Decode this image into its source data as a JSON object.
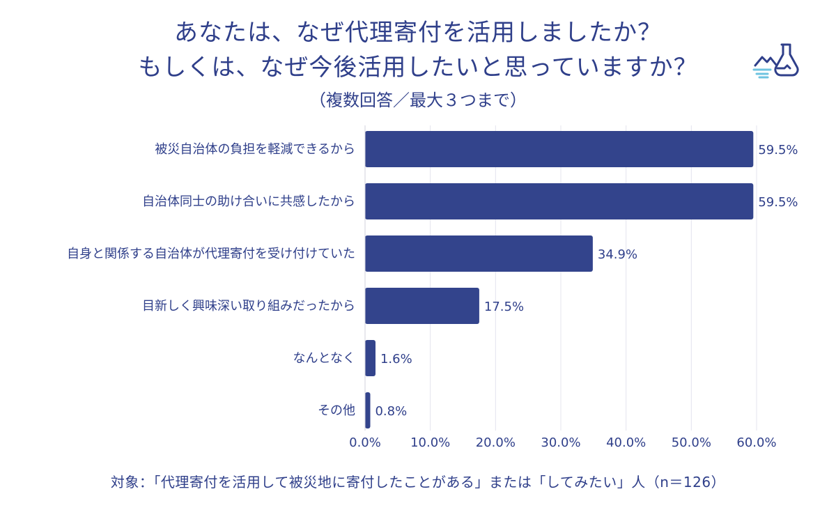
{
  "header": {
    "title_line1": "あなたは、なぜ代理寄付を活用しましたか？",
    "title_line2": "もしくは、なぜ今後活用したいと思っていますか？",
    "subtitle": "（複数回答／最大３つまで）"
  },
  "footnote": "対象：「代理寄付を活用して被災地に寄付したことがある」または「してみたい」人（n＝126）",
  "logo_icon": "flask-landscape-icon",
  "colors": {
    "bar": "#33448c",
    "text": "#2f3f8a",
    "grid": "#e4e4ee"
  },
  "chart_data": {
    "type": "bar",
    "orientation": "horizontal",
    "categories": [
      "被災自治体の負担を軽減できるから",
      "自治体同士の助け合いに共感したから",
      "自身と関係する自治体が代理寄付を受け付けていた",
      "目新しく興味深い取り組みだったから",
      "なんとなく",
      "その他"
    ],
    "values": [
      59.5,
      59.5,
      34.9,
      17.5,
      1.6,
      0.8
    ],
    "value_labels": [
      "59.5%",
      "59.5%",
      "34.9%",
      "17.5%",
      "1.6%",
      "0.8%"
    ],
    "xlim": [
      0,
      60
    ],
    "xticks": [
      0,
      10,
      20,
      30,
      40,
      50,
      60
    ],
    "xtick_labels": [
      "0.0%",
      "10.0%",
      "20.0%",
      "30.0%",
      "40.0%",
      "50.0%",
      "60.0%"
    ],
    "grid": true,
    "xlabel": "",
    "ylabel": ""
  }
}
